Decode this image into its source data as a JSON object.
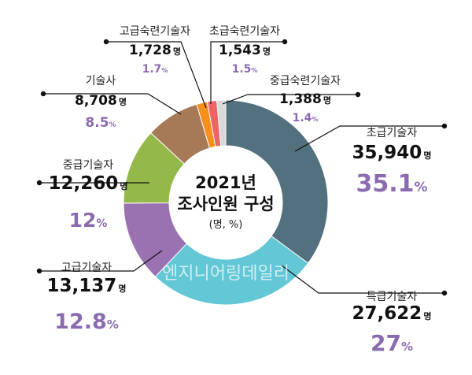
{
  "chart_data": {
    "type": "pie",
    "title": "2021년",
    "subtitle": "조사인원 구성",
    "unit_note": "(명, %)",
    "watermark": "엔지니어링데일리",
    "unit_suffix": "명",
    "pct_suffix": "%",
    "slices": [
      {
        "label": "초급기술자",
        "count": "35,940",
        "pct": "35.1",
        "value": 35.1,
        "color": "#52707d"
      },
      {
        "label": "특급기술자",
        "count": "27,622",
        "pct": "27",
        "value": 27.0,
        "color": "#64c7d6"
      },
      {
        "label": "고급기술자",
        "count": "13,137",
        "pct": "12.8",
        "value": 12.8,
        "color": "#9a72b2"
      },
      {
        "label": "중급기술자",
        "count": "12,260",
        "pct": "12",
        "value": 12.0,
        "color": "#95b84a"
      },
      {
        "label": "기술사",
        "count": "8,708",
        "pct": "8.5",
        "value": 8.5,
        "color": "#a67a57"
      },
      {
        "label": "고급숙련기술자",
        "count": "1,728",
        "pct": "1.7",
        "value": 1.7,
        "color": "#f6901d"
      },
      {
        "label": "초급숙련기술자",
        "count": "1,543",
        "pct": "1.5",
        "value": 1.5,
        "color": "#ee6363"
      },
      {
        "label": "중급숙련기술자",
        "count": "1,388",
        "pct": "1.4",
        "value": 1.4,
        "color": "#d9d9d9"
      }
    ]
  }
}
